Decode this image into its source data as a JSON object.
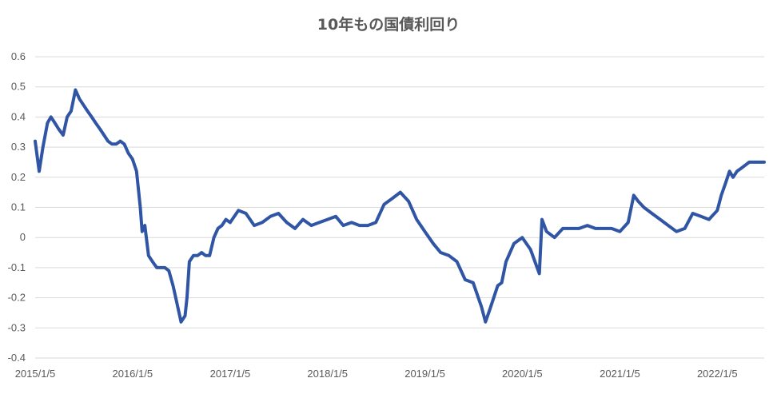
{
  "chart_data": {
    "type": "line",
    "title": "10年もの国債利回り",
    "xlabel": "",
    "ylabel": "",
    "ylim": [
      -0.4,
      0.6
    ],
    "y_ticks": [
      "-0.4",
      "-0.3",
      "-0.2",
      "-0.1",
      "0",
      "0.1",
      "0.2",
      "0.3",
      "0.4",
      "0.5",
      "0.6"
    ],
    "x_ticks": [
      "2015/1/5",
      "2016/1/5",
      "2017/1/5",
      "2018/1/5",
      "2019/1/5",
      "2020/1/5",
      "2021/1/5",
      "2022/1/5"
    ],
    "x_range": [
      "2015/1/5",
      "2022/6/30"
    ],
    "grid": true,
    "legend": "none",
    "series_color": "#2f55a4",
    "series": [
      {
        "x": [
          "2015/1/5",
          "2015/1/20",
          "2015/2/3",
          "2015/2/20",
          "2015/3/5",
          "2015/3/20",
          "2015/4/3",
          "2015/4/20",
          "2015/5/5",
          "2015/5/20",
          "2015/6/5",
          "2015/6/20",
          "2015/7/5",
          "2015/7/20",
          "2015/8/5",
          "2015/8/20",
          "2015/9/5",
          "2015/9/20",
          "2015/10/5",
          "2015/10/20",
          "2015/11/5",
          "2015/11/20",
          "2015/12/5",
          "2015/12/20",
          "2016/1/5",
          "2016/1/20",
          "2016/2/3",
          "2016/2/10",
          "2016/2/20",
          "2016/3/5",
          "2016/3/20",
          "2016/4/5",
          "2016/4/20",
          "2016/5/5",
          "2016/5/20",
          "2016/6/5",
          "2016/6/20",
          "2016/7/5",
          "2016/7/20",
          "2016/7/27",
          "2016/8/5",
          "2016/8/20",
          "2016/9/5",
          "2016/9/20",
          "2016/10/5",
          "2016/10/20",
          "2016/11/5",
          "2016/11/20",
          "2016/12/5",
          "2016/12/20",
          "2017/1/5",
          "2017/2/5",
          "2017/3/5",
          "2017/4/5",
          "2017/5/5",
          "2017/6/5",
          "2017/7/5",
          "2017/8/5",
          "2017/9/5",
          "2017/10/5",
          "2017/11/5",
          "2017/12/5",
          "2018/1/5",
          "2018/2/5",
          "2018/3/5",
          "2018/4/5",
          "2018/5/5",
          "2018/6/5",
          "2018/7/5",
          "2018/8/5",
          "2018/9/5",
          "2018/10/5",
          "2018/11/5",
          "2018/12/5",
          "2019/1/5",
          "2019/2/5",
          "2019/3/5",
          "2019/4/5",
          "2019/5/5",
          "2019/6/5",
          "2019/7/5",
          "2019/8/5",
          "2019/8/20",
          "2019/9/5",
          "2019/9/20",
          "2019/10/5",
          "2019/10/20",
          "2019/11/5",
          "2019/12/5",
          "2020/1/5",
          "2020/2/5",
          "2020/3/9",
          "2020/3/19",
          "2020/4/5",
          "2020/5/5",
          "2020/6/5",
          "2020/7/5",
          "2020/8/5",
          "2020/9/5",
          "2020/10/5",
          "2020/11/5",
          "2020/12/5",
          "2021/1/5",
          "2021/2/5",
          "2021/2/26",
          "2021/3/15",
          "2021/4/5",
          "2021/5/5",
          "2021/6/5",
          "2021/7/5",
          "2021/8/5",
          "2021/9/5",
          "2021/10/5",
          "2021/11/5",
          "2021/12/5",
          "2022/1/5",
          "2022/1/20",
          "2022/2/5",
          "2022/2/20",
          "2022/3/5",
          "2022/3/20",
          "2022/4/5",
          "2022/4/20",
          "2022/5/5",
          "2022/5/20",
          "2022/6/5",
          "2022/6/30"
        ],
        "values": [
          0.32,
          0.22,
          0.3,
          0.38,
          0.4,
          0.38,
          0.36,
          0.34,
          0.4,
          0.42,
          0.49,
          0.46,
          0.44,
          0.42,
          0.4,
          0.38,
          0.36,
          0.34,
          0.32,
          0.31,
          0.31,
          0.32,
          0.31,
          0.28,
          0.26,
          0.22,
          0.1,
          0.02,
          0.04,
          -0.06,
          -0.08,
          -0.1,
          -0.1,
          -0.1,
          -0.11,
          -0.16,
          -0.22,
          -0.28,
          -0.26,
          -0.2,
          -0.08,
          -0.06,
          -0.06,
          -0.05,
          -0.06,
          -0.06,
          0.0,
          0.03,
          0.04,
          0.06,
          0.05,
          0.09,
          0.08,
          0.04,
          0.05,
          0.07,
          0.08,
          0.05,
          0.03,
          0.06,
          0.04,
          0.05,
          0.06,
          0.07,
          0.04,
          0.05,
          0.04,
          0.04,
          0.05,
          0.11,
          0.13,
          0.15,
          0.12,
          0.06,
          0.02,
          -0.02,
          -0.05,
          -0.06,
          -0.08,
          -0.14,
          -0.15,
          -0.23,
          -0.28,
          -0.24,
          -0.2,
          -0.16,
          -0.15,
          -0.08,
          -0.02,
          0.0,
          -0.04,
          -0.12,
          0.06,
          0.02,
          0.0,
          0.03,
          0.03,
          0.03,
          0.04,
          0.03,
          0.03,
          0.03,
          0.02,
          0.05,
          0.14,
          0.12,
          0.1,
          0.08,
          0.06,
          0.04,
          0.02,
          0.03,
          0.08,
          0.07,
          0.06,
          0.09,
          0.14,
          0.18,
          0.22,
          0.2,
          0.22,
          0.23,
          0.24,
          0.25,
          0.25,
          0.25,
          0.25
        ]
      }
    ]
  }
}
